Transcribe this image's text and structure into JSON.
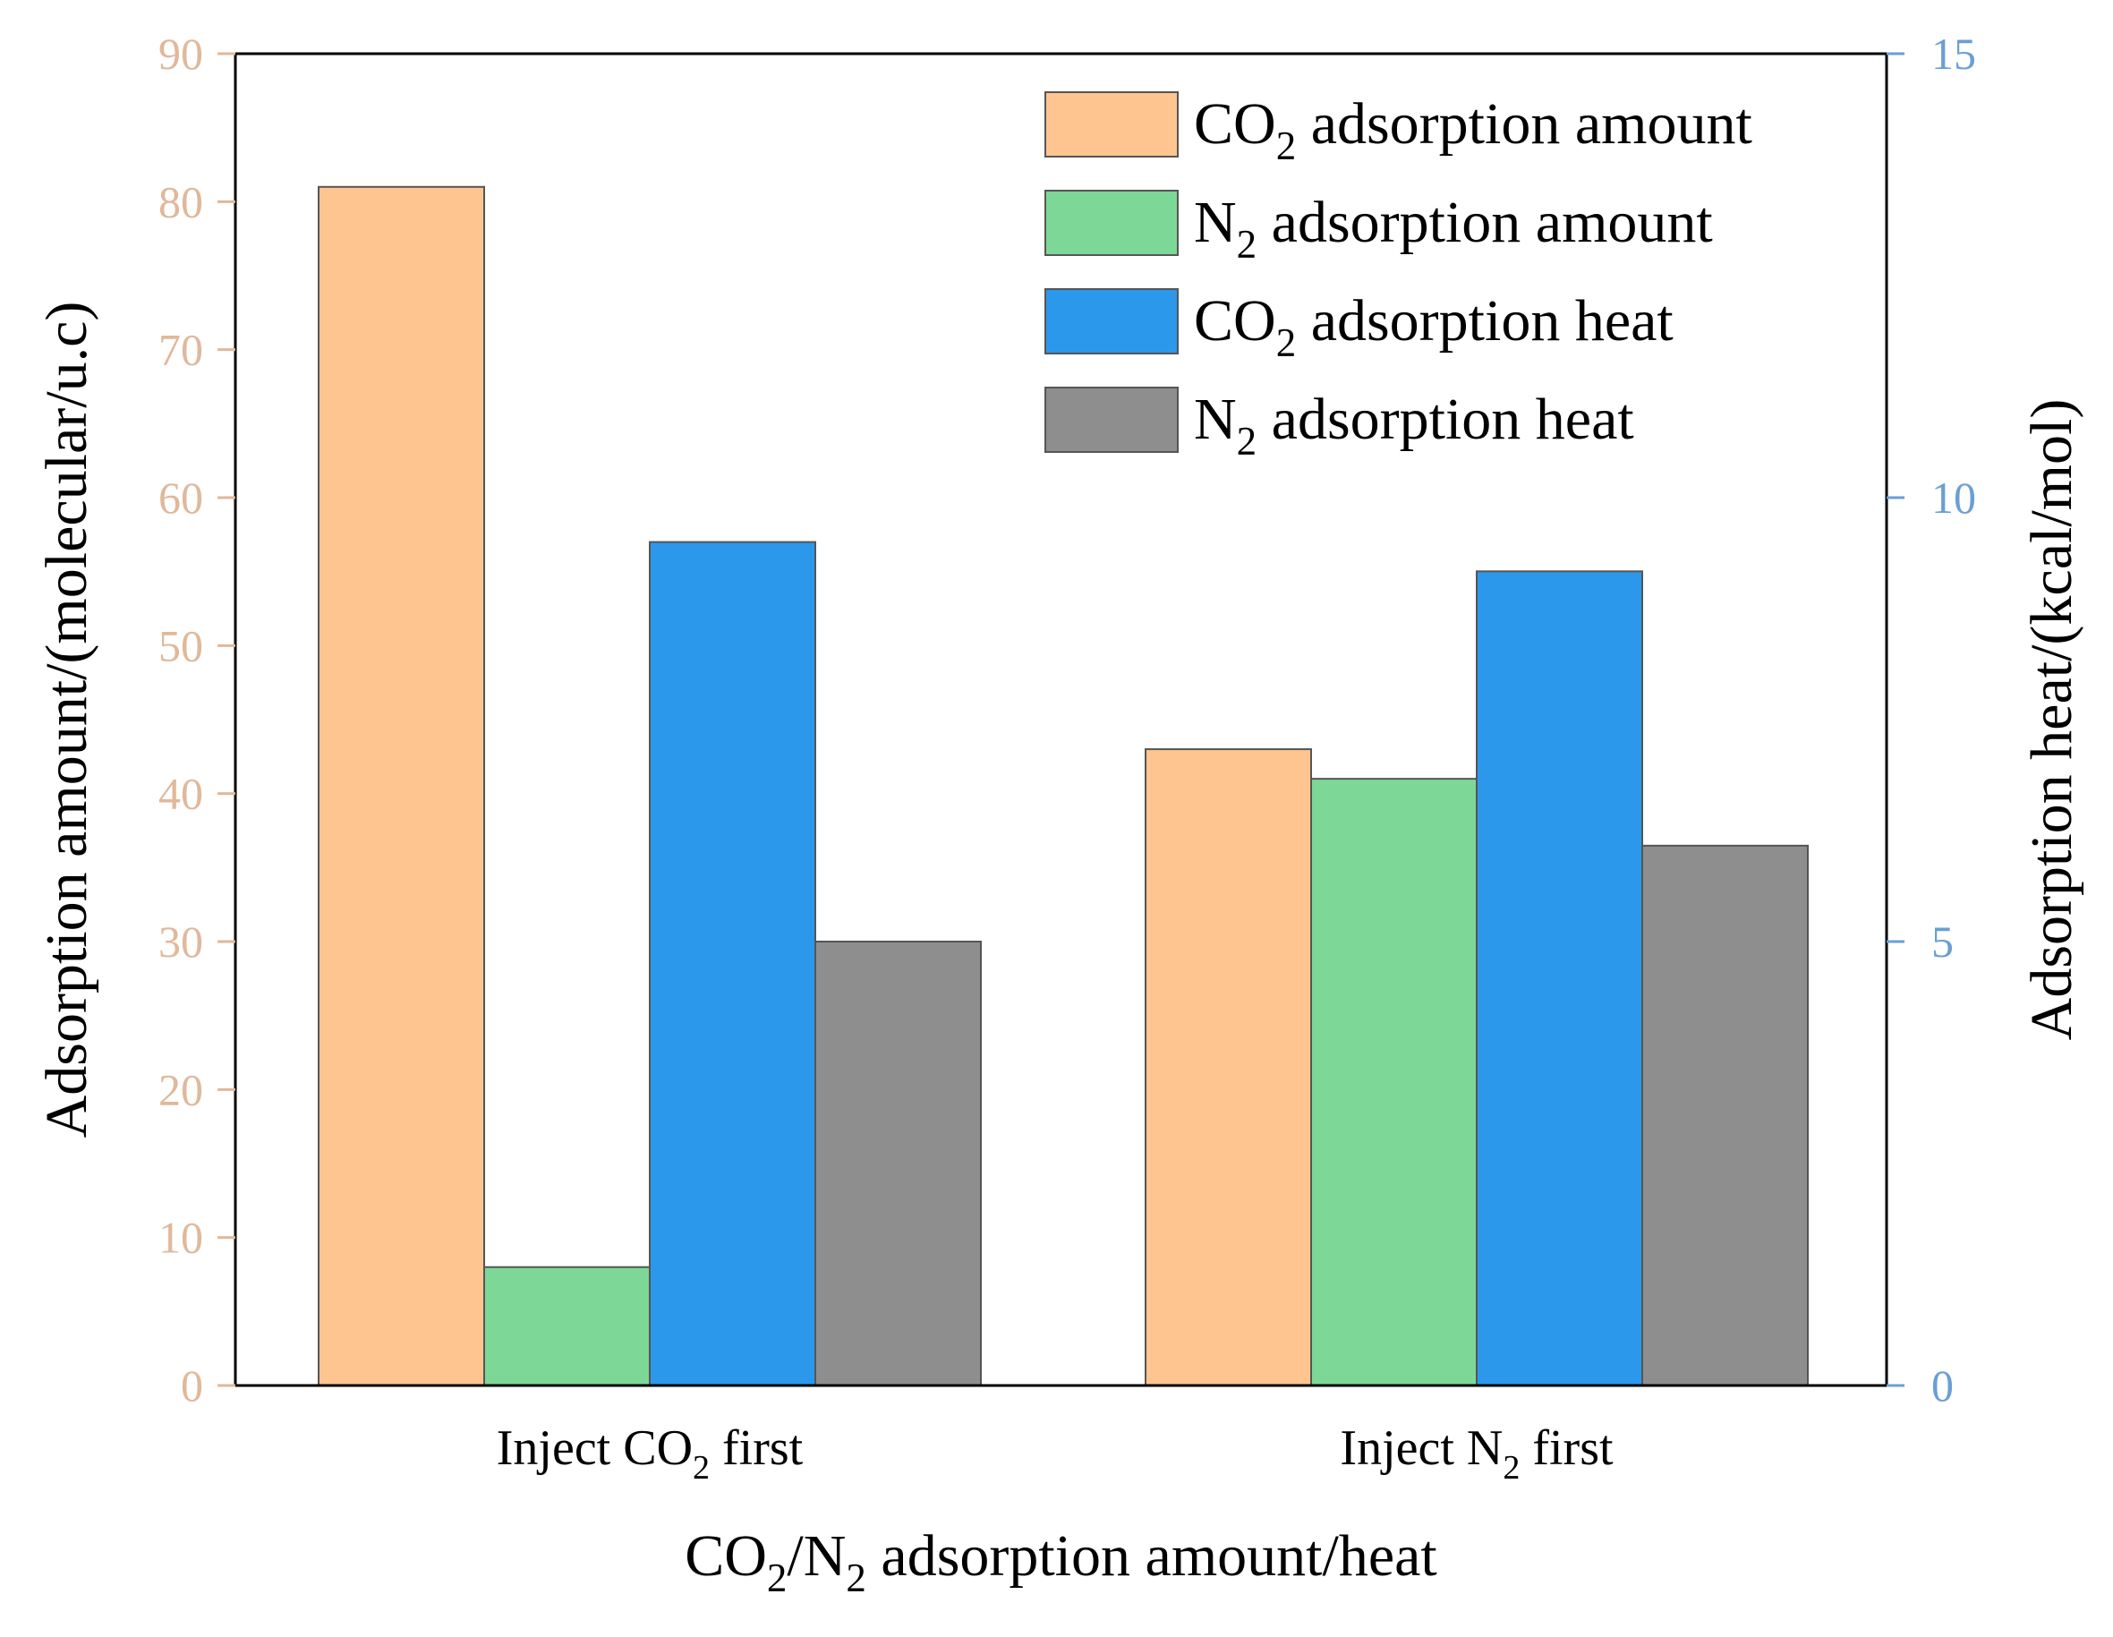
{
  "chart_data": {
    "type": "bar",
    "title": "",
    "categories": [
      "Inject CO2 first",
      "Inject N2 first"
    ],
    "category_labels": [
      {
        "pre": "Inject CO",
        "sub": "2",
        "post": " first"
      },
      {
        "pre": "Inject N",
        "sub": "2",
        "post": " first"
      }
    ],
    "xlabel": {
      "parts": [
        {
          "text": "CO",
          "sub": false
        },
        {
          "text": "2",
          "sub": true
        },
        {
          "text": "/N",
          "sub": false
        },
        {
          "text": "2",
          "sub": true
        },
        {
          "text": " adsorption amount/heat",
          "sub": false
        }
      ]
    },
    "ylabel_left": "Adsorption amount/(molecular/u.c)",
    "ylabel_right": "Adsorption heat/(kcal/mol)",
    "ylim_left": [
      0,
      90
    ],
    "ylim_right": [
      0,
      15
    ],
    "yticks_left": [
      0,
      10,
      20,
      30,
      40,
      50,
      60,
      70,
      80,
      90
    ],
    "yticks_right": [
      0,
      5,
      10,
      15
    ],
    "left_axis_color": "#e0b89a",
    "right_axis_color": "#6a9fd4",
    "grid": false,
    "legend_position": "top-right",
    "series": [
      {
        "name": "CO2 adsorption amount",
        "label_pre": "CO",
        "label_sub": "2",
        "label_post": " adsorption amount",
        "axis": "left",
        "color": "#ffc590",
        "values": [
          81,
          43
        ]
      },
      {
        "name": "N2 adsorption amount",
        "label_pre": "N",
        "label_sub": "2",
        "label_post": " adsorption amount",
        "axis": "left",
        "color": "#7dd897",
        "values": [
          8,
          41
        ]
      },
      {
        "name": "CO2 adsorption heat",
        "label_pre": "CO",
        "label_sub": "2",
        "label_post": " adsorption heat",
        "axis": "right",
        "color": "#2b98ec",
        "values": [
          9.5,
          9.17
        ]
      },
      {
        "name": "N2 adsorption heat",
        "label_pre": "N",
        "label_sub": "2",
        "label_post": " adsorption heat",
        "axis": "right",
        "color": "#8e8e8e",
        "values": [
          5.0,
          6.08
        ]
      }
    ]
  }
}
